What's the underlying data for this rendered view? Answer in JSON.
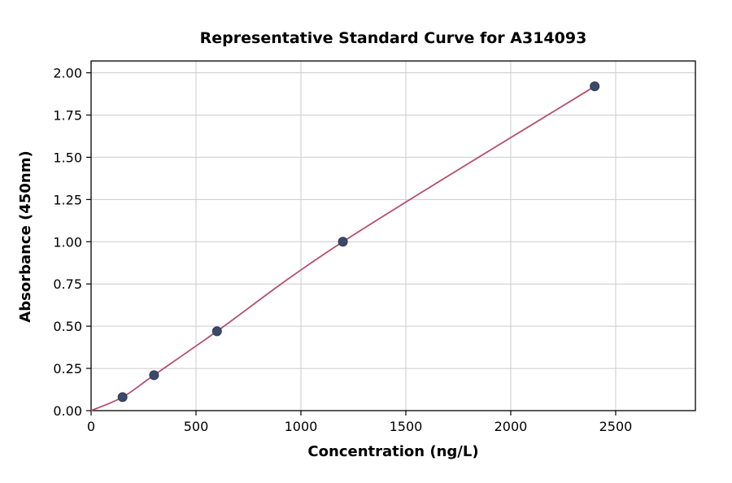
{
  "chart_data": {
    "type": "scatter",
    "title": "Representative Standard Curve for A314093",
    "xlabel": "Concentration (ng/L)",
    "ylabel": "Absorbance (450nm)",
    "x": [
      150,
      300,
      600,
      1200,
      2400
    ],
    "y": [
      0.08,
      0.21,
      0.47,
      1.0,
      1.92
    ],
    "curve_points": [
      [
        0,
        0.0
      ],
      [
        150,
        0.08
      ],
      [
        300,
        0.21
      ],
      [
        600,
        0.47
      ],
      [
        1200,
        1.0
      ],
      [
        2400,
        1.92
      ]
    ],
    "xlim": [
      0,
      2880
    ],
    "ylim": [
      0,
      2.07
    ],
    "xticks": [
      0,
      500,
      1000,
      1500,
      2000,
      2500
    ],
    "yticks": [
      0.0,
      0.25,
      0.5,
      0.75,
      1.0,
      1.25,
      1.5,
      1.75,
      2.0
    ],
    "grid": true,
    "legend": "none",
    "colors": {
      "line_color": "#b5506e",
      "point_color": "#3b4a6b",
      "point_edge_color": "#2e3a55",
      "grid_color": "#cccccc",
      "axis_color": "#000000",
      "background": "#ffffff"
    }
  }
}
